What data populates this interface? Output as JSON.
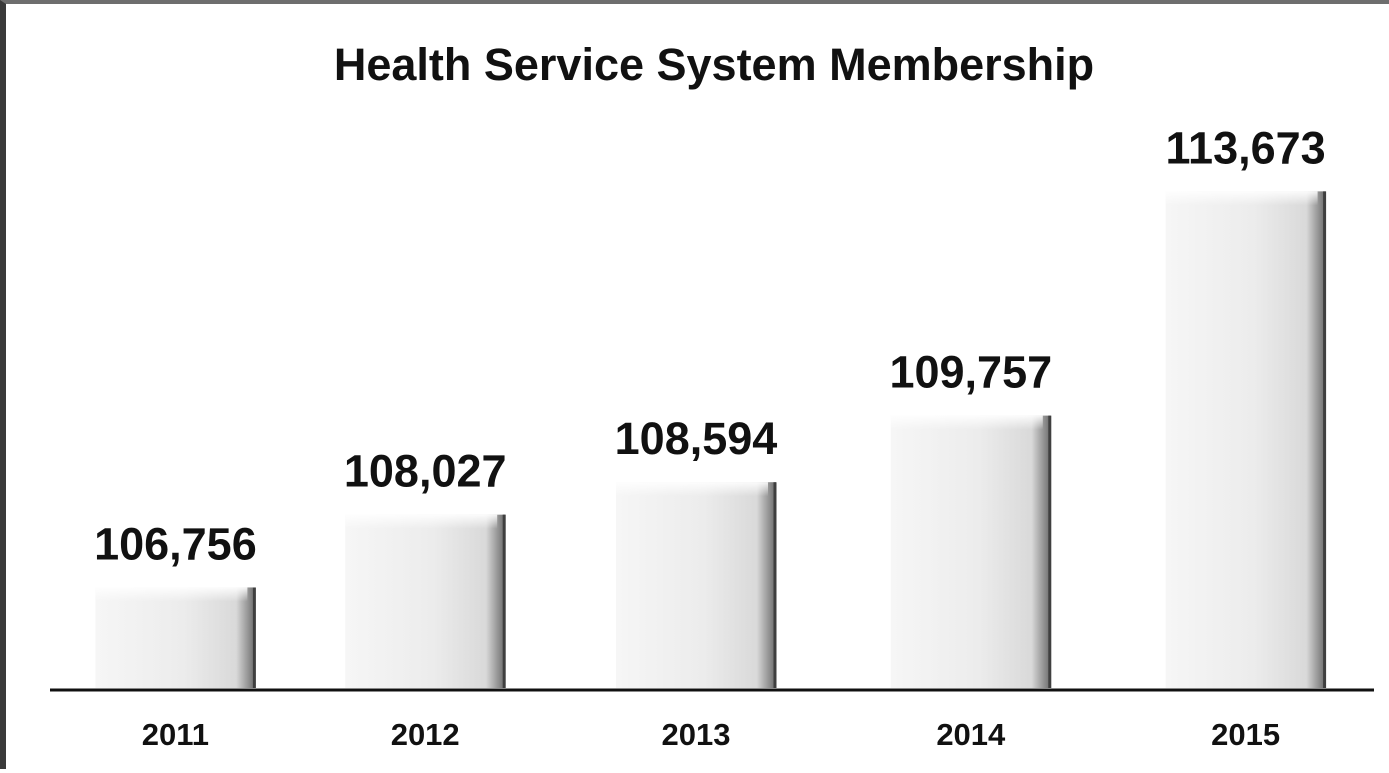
{
  "chart_data": {
    "type": "bar",
    "title": "Health Service System Membership",
    "categories": [
      "2011",
      "2012",
      "2013",
      "2014",
      "2015"
    ],
    "values": [
      106756,
      108027,
      108594,
      109757,
      113673
    ],
    "value_labels": [
      "106,756",
      "108,027",
      "108,594",
      "109,757",
      "113,673"
    ],
    "xlabel": "",
    "ylabel": "",
    "ylim": [
      105000,
      114500
    ],
    "grid": false,
    "legend": "none",
    "colors": {
      "bar_fill": "#e9e9e9",
      "bar_edge": "#4a4a4a",
      "axis": "#111111",
      "text": "#111111"
    }
  }
}
